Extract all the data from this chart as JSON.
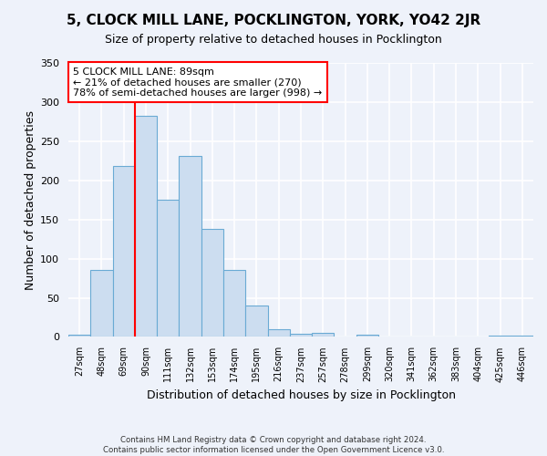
{
  "title": "5, CLOCK MILL LANE, POCKLINGTON, YORK, YO42 2JR",
  "subtitle": "Size of property relative to detached houses in Pocklington",
  "xlabel": "Distribution of detached houses by size in Pocklington",
  "ylabel": "Number of detached properties",
  "bar_color": "#ccddf0",
  "bar_edge_color": "#6aaad4",
  "categories": [
    "27sqm",
    "48sqm",
    "69sqm",
    "90sqm",
    "111sqm",
    "132sqm",
    "153sqm",
    "174sqm",
    "195sqm",
    "216sqm",
    "237sqm",
    "257sqm",
    "278sqm",
    "299sqm",
    "320sqm",
    "341sqm",
    "362sqm",
    "383sqm",
    "404sqm",
    "425sqm",
    "446sqm"
  ],
  "values": [
    3,
    86,
    218,
    283,
    175,
    231,
    138,
    85,
    40,
    10,
    4,
    5,
    0,
    3,
    0,
    0,
    0,
    1,
    0,
    2,
    2
  ],
  "ylim": [
    0,
    350
  ],
  "yticks": [
    0,
    50,
    100,
    150,
    200,
    250,
    300,
    350
  ],
  "red_line_index": 3,
  "annotation_line1": "5 CLOCK MILL LANE: 89sqm",
  "annotation_line2": "← 21% of detached houses are smaller (270)",
  "annotation_line3": "78% of semi-detached houses are larger (998) →",
  "annotation_box_color": "white",
  "annotation_box_edge_color": "red",
  "footer_line1": "Contains HM Land Registry data © Crown copyright and database right 2024.",
  "footer_line2": "Contains public sector information licensed under the Open Government Licence v3.0.",
  "background_color": "#eef2fa",
  "grid_color": "white",
  "title_fontsize": 11,
  "subtitle_fontsize": 9,
  "ylabel_fontsize": 9,
  "xlabel_fontsize": 9
}
